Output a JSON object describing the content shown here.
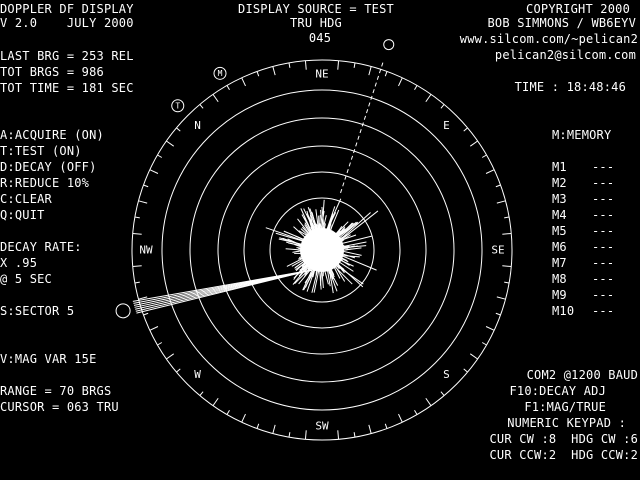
{
  "header": {
    "title": "DOPPLER DF DISPLAY",
    "version_line": "V 2.0    JULY 2000",
    "display_source": "DISPLAY SOURCE = TEST",
    "heading_mode": "TRU HDG",
    "heading_value": "045",
    "copyright": "COPYRIGHT 2000",
    "author": "BOB SIMMONS / WB6EYV",
    "url": "www.silcom.com/~pelican2",
    "email": "pelican2@silcom.com"
  },
  "stats": {
    "last_brg": "LAST BRG = 253 REL",
    "tot_brgs": "TOT BRGS = 986",
    "tot_time": "TOT TIME = 181 SEC"
  },
  "time": "TIME : 18:48:46",
  "commands": [
    {
      "key": "A",
      "label": "A:ACQUIRE (ON)"
    },
    {
      "key": "T",
      "label": "T:TEST (ON)"
    },
    {
      "key": "D",
      "label": "D:DECAY (OFF)"
    },
    {
      "key": "R",
      "label": "R:REDUCE 10%"
    },
    {
      "key": "C",
      "label": "C:CLEAR"
    },
    {
      "key": "Q",
      "label": "Q:QUIT"
    }
  ],
  "decay": {
    "label": "DECAY RATE:",
    "factor": "X .95",
    "interval": "@ 5 SEC"
  },
  "sector": "S:SECTOR 5",
  "mag_var": "V:MAG VAR 15E",
  "range": "RANGE = 70 BRGS",
  "cursor": "CURSOR = 063 TRU",
  "memory": {
    "title": "M:MEMORY",
    "slots": [
      {
        "label": "M1",
        "value": "---"
      },
      {
        "label": "M2",
        "value": "---"
      },
      {
        "label": "M3",
        "value": "---"
      },
      {
        "label": "M4",
        "value": "---"
      },
      {
        "label": "M5",
        "value": "---"
      },
      {
        "label": "M6",
        "value": "---"
      },
      {
        "label": "M7",
        "value": "---"
      },
      {
        "label": "M8",
        "value": "---"
      },
      {
        "label": "M9",
        "value": "---"
      },
      {
        "label": "M10",
        "value": "---"
      }
    ]
  },
  "port": "COM2 @1200 BAUD",
  "f10": "F10:DECAY ADJ",
  "f1": "F1:MAG/TRUE",
  "keypad": {
    "title": "NUMERIC KEYPAD :",
    "row1": "CUR CW :8  HDG CW :6",
    "row2": "CUR CCW:2  HDG CCW:2"
  },
  "compass": {
    "labels": [
      "NE",
      "E",
      "SE",
      "S",
      "SW",
      "W",
      "NW",
      "N"
    ],
    "marker_t": "T",
    "marker_m": "M",
    "rings": 6,
    "heading_deg": 45,
    "cursor_deg": 63,
    "mag_var_deg": 15,
    "last_brg_true_deg": 298
  },
  "colors": {
    "fg": "#ffffff",
    "bg": "#000000"
  }
}
